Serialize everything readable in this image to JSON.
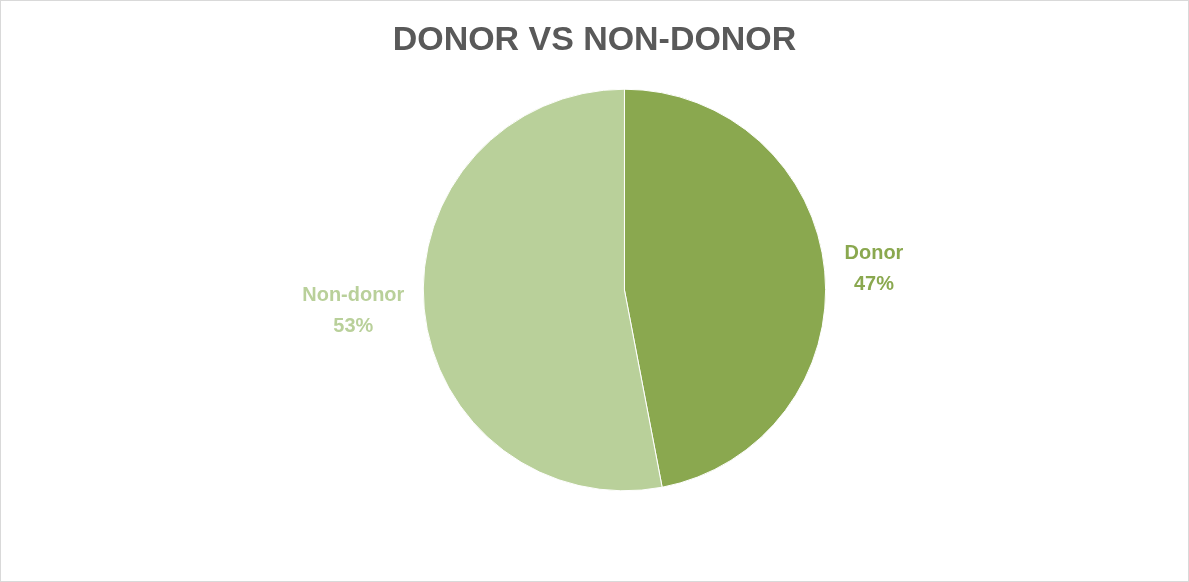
{
  "chart_data": {
    "type": "pie",
    "title": "DONOR VS NON-DONOR",
    "categories": [
      "Donor",
      "Non-donor"
    ],
    "values": [
      47,
      53
    ],
    "value_labels": [
      "47%",
      "53%"
    ],
    "colors": [
      "#8aa84f",
      "#b9d09a"
    ],
    "legend": false
  }
}
